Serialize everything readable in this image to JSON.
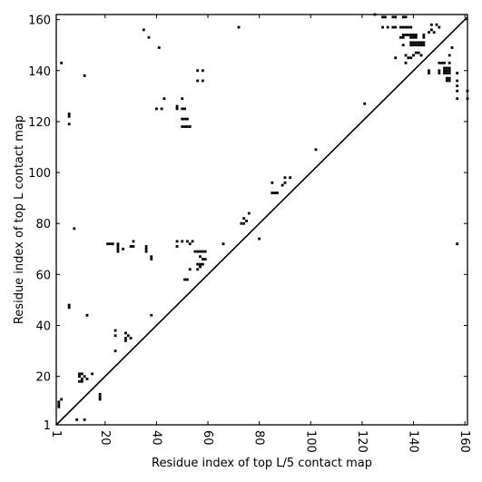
{
  "chart_data": {
    "type": "scatter",
    "marker": "square",
    "title": "",
    "xlabel": "Residue index of top L/5 contact map",
    "ylabel": "Residue index of top L contact map",
    "xlim": [
      1,
      161
    ],
    "ylim": [
      1,
      162
    ],
    "x_ticks": [
      1,
      20,
      40,
      60,
      80,
      100,
      120,
      140,
      160
    ],
    "y_ticks": [
      1,
      20,
      40,
      60,
      80,
      100,
      120,
      140,
      160
    ],
    "grid": false,
    "diagonal_line": true,
    "colors": {
      "points": "#000000",
      "diagonal": "#000000",
      "frame": "#000000",
      "background": "#ffffff"
    },
    "series": [
      {
        "points": [
          [
            3,
            143
          ],
          [
            3,
            11
          ],
          [
            2,
            10
          ],
          [
            2,
            9
          ],
          [
            2,
            8
          ],
          [
            6,
            123
          ],
          [
            6,
            122
          ],
          [
            6,
            119
          ],
          [
            6,
            48
          ],
          [
            6,
            47
          ],
          [
            8,
            78
          ],
          [
            9,
            3
          ],
          [
            10,
            21
          ],
          [
            11,
            21
          ],
          [
            10,
            20
          ],
          [
            11,
            19
          ],
          [
            10,
            18
          ],
          [
            11,
            18
          ],
          [
            12,
            3
          ],
          [
            12,
            20
          ],
          [
            12,
            138
          ],
          [
            13,
            44
          ],
          [
            13,
            19
          ],
          [
            15,
            21
          ],
          [
            18,
            13
          ],
          [
            18,
            12
          ],
          [
            18,
            11
          ],
          [
            21,
            72
          ],
          [
            22,
            72
          ],
          [
            23,
            72
          ],
          [
            24,
            38
          ],
          [
            24,
            36
          ],
          [
            24,
            30
          ],
          [
            25,
            72
          ],
          [
            25,
            71
          ],
          [
            25,
            70
          ],
          [
            25,
            69
          ],
          [
            27,
            70
          ],
          [
            28,
            37
          ],
          [
            28,
            35
          ],
          [
            28,
            34
          ],
          [
            29,
            36
          ],
          [
            30,
            35
          ],
          [
            30,
            71
          ],
          [
            31,
            71
          ],
          [
            31,
            73
          ],
          [
            35,
            156
          ],
          [
            36,
            71
          ],
          [
            36,
            70
          ],
          [
            36,
            69
          ],
          [
            37,
            153
          ],
          [
            38,
            67
          ],
          [
            38,
            66
          ],
          [
            38,
            44
          ],
          [
            40,
            125
          ],
          [
            41,
            149
          ],
          [
            42,
            125
          ],
          [
            43,
            129
          ],
          [
            48,
            126
          ],
          [
            48,
            125
          ],
          [
            48,
            73
          ],
          [
            48,
            71
          ],
          [
            50,
            129
          ],
          [
            50,
            125
          ],
          [
            51,
            125
          ],
          [
            50,
            121
          ],
          [
            51,
            121
          ],
          [
            52,
            121
          ],
          [
            50,
            118
          ],
          [
            51,
            118
          ],
          [
            52,
            118
          ],
          [
            53,
            118
          ],
          [
            51,
            58
          ],
          [
            52,
            58
          ],
          [
            50,
            73
          ],
          [
            52,
            73
          ],
          [
            53,
            72
          ],
          [
            54,
            73
          ],
          [
            53,
            62
          ],
          [
            55,
            69
          ],
          [
            56,
            69
          ],
          [
            57,
            69
          ],
          [
            58,
            69
          ],
          [
            59,
            69
          ],
          [
            57,
            67
          ],
          [
            58,
            66
          ],
          [
            59,
            66
          ],
          [
            56,
            64
          ],
          [
            57,
            64
          ],
          [
            58,
            64
          ],
          [
            56,
            62
          ],
          [
            57,
            63
          ],
          [
            56,
            140
          ],
          [
            58,
            140
          ],
          [
            56,
            136
          ],
          [
            58,
            136
          ],
          [
            66,
            72
          ],
          [
            72,
            157
          ],
          [
            73,
            80
          ],
          [
            74,
            82
          ],
          [
            75,
            81
          ],
          [
            76,
            84
          ],
          [
            74,
            80
          ],
          [
            80,
            74
          ],
          [
            85,
            96
          ],
          [
            85,
            92
          ],
          [
            86,
            92
          ],
          [
            87,
            92
          ],
          [
            89,
            95
          ],
          [
            90,
            96
          ],
          [
            90,
            98
          ],
          [
            92,
            98
          ],
          [
            102,
            109
          ],
          [
            121,
            127
          ],
          [
            125,
            162
          ],
          [
            128,
            161
          ],
          [
            129,
            161
          ],
          [
            132,
            161
          ],
          [
            133,
            161
          ],
          [
            136,
            161
          ],
          [
            137,
            161
          ],
          [
            128,
            157
          ],
          [
            130,
            157
          ],
          [
            132,
            157
          ],
          [
            133,
            157
          ],
          [
            135,
            157
          ],
          [
            136,
            157
          ],
          [
            137,
            157
          ],
          [
            138,
            157
          ],
          [
            139,
            157
          ],
          [
            136,
            154
          ],
          [
            137,
            154
          ],
          [
            138,
            154
          ],
          [
            139,
            154
          ],
          [
            140,
            154
          ],
          [
            141,
            154
          ],
          [
            135,
            153
          ],
          [
            136,
            153
          ],
          [
            139,
            153
          ],
          [
            140,
            153
          ],
          [
            141,
            153
          ],
          [
            136,
            150
          ],
          [
            139,
            150
          ],
          [
            140,
            150
          ],
          [
            141,
            150
          ],
          [
            142,
            150
          ],
          [
            143,
            150
          ],
          [
            144,
            150
          ],
          [
            139,
            151
          ],
          [
            140,
            151
          ],
          [
            141,
            151
          ],
          [
            142,
            151
          ],
          [
            143,
            151
          ],
          [
            144,
            151
          ],
          [
            142,
            147
          ],
          [
            143,
            146
          ],
          [
            141,
            147
          ],
          [
            133,
            145
          ],
          [
            137,
            146
          ],
          [
            138,
            145
          ],
          [
            139,
            145
          ],
          [
            137,
            143
          ],
          [
            140,
            146
          ],
          [
            144,
            154
          ],
          [
            144,
            153
          ],
          [
            146,
            155
          ],
          [
            147,
            156
          ],
          [
            148,
            155
          ],
          [
            147,
            158
          ],
          [
            149,
            158
          ],
          [
            150,
            157
          ],
          [
            146,
            140
          ],
          [
            146,
            139
          ],
          [
            150,
            143
          ],
          [
            151,
            143
          ],
          [
            150,
            140
          ],
          [
            150,
            139
          ],
          [
            152,
            143
          ],
          [
            154,
            143
          ],
          [
            152,
            141
          ],
          [
            153,
            141
          ],
          [
            154,
            141
          ],
          [
            152,
            140
          ],
          [
            153,
            140
          ],
          [
            154,
            140
          ],
          [
            152,
            139
          ],
          [
            153,
            139
          ],
          [
            154,
            139
          ],
          [
            153,
            137
          ],
          [
            154,
            137
          ],
          [
            153,
            136
          ],
          [
            154,
            136
          ],
          [
            154,
            146
          ],
          [
            155,
            149
          ],
          [
            157,
            139
          ],
          [
            157,
            136
          ],
          [
            157,
            134
          ],
          [
            157,
            132
          ],
          [
            157,
            129
          ],
          [
            157,
            72
          ],
          [
            161,
            132
          ],
          [
            161,
            129
          ]
        ]
      }
    ]
  }
}
